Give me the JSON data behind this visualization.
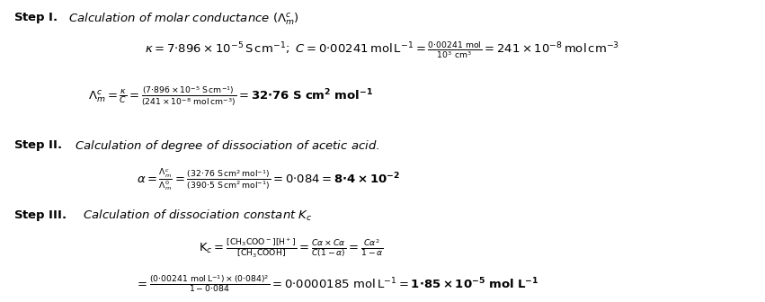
{
  "bg_color": "#ffffff",
  "text_color": "#000000",
  "figsize": [
    8.51,
    3.36
  ],
  "dpi": 100
}
